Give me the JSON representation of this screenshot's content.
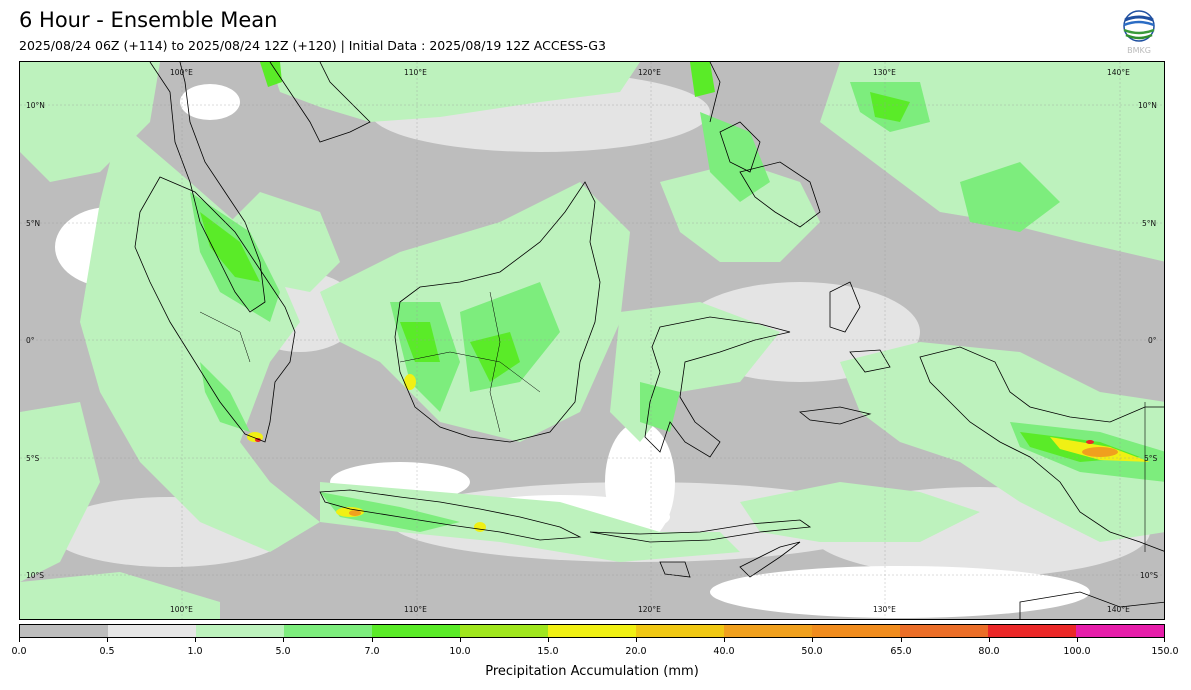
{
  "header": {
    "title": "6 Hour - Ensemble Mean",
    "subtitle": "2025/08/24 06Z (+114) to 2025/08/24 12Z (+120) | Initial Data : 2025/08/19 12Z ACCESS-G3"
  },
  "logo": {
    "text": "BMKG",
    "icon": "bmkg-logo-icon"
  },
  "map": {
    "lon_labels": [
      "100°E",
      "110°E",
      "120°E",
      "130°E",
      "140°E"
    ],
    "lat_labels": [
      "10°N",
      "5°N",
      "0°",
      "5°S",
      "10°S"
    ],
    "background_color": "#bdbdbd"
  },
  "colorbar": {
    "label": "Precipitation Accumulation (mm)",
    "ticks": [
      "0.0",
      "0.5",
      "1.0",
      "5.0",
      "7.0",
      "10.0",
      "15.0",
      "20.0",
      "40.0",
      "50.0",
      "65.0",
      "80.0",
      "100.0",
      "150.0"
    ],
    "colors": [
      "#bdbdbd",
      "#e6e6e6",
      "#bdf2bd",
      "#7ded7d",
      "#5aeb28",
      "#a0e61e",
      "#f0f014",
      "#f0c814",
      "#f0a01e",
      "#f08c1e",
      "#eb6e28",
      "#eb2828",
      "#e61eaa"
    ]
  }
}
